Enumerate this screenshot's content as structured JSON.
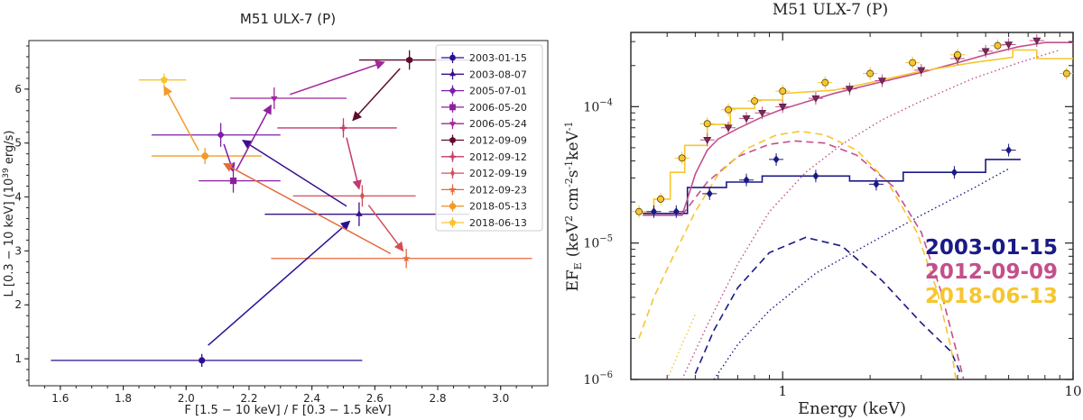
{
  "chart_data": [
    {
      "type": "scatter",
      "title": "M51 ULX-7 (P)",
      "xlabel": "F [1.5 − 10 keV] / F [0.3 − 1.5 keV]",
      "ylabel": "L [0.3 − 10 keV] (10",
      "ylabel_sup": "39",
      "ylabel_tail": " erg/s)",
      "xlim": [
        1.5,
        3.15
      ],
      "ylim": [
        0.5,
        6.9
      ],
      "xticks": [
        "1.6",
        "1.8",
        "2.0",
        "2.2",
        "2.4",
        "2.6",
        "2.8",
        "3.0"
      ],
      "yticks": [
        "1",
        "2",
        "3",
        "4",
        "5",
        "6"
      ],
      "series": [
        {
          "name": "2003-01-15",
          "marker": "circle",
          "color": "#2b0f94",
          "x": 2.05,
          "y": 0.97,
          "xerr": [
            0.48,
            0.51
          ],
          "yerr": 0.12
        },
        {
          "name": "2003-08-07",
          "marker": "triangle-up",
          "color": "#3a0f8a",
          "x": 2.55,
          "y": 3.68,
          "xerr": [
            0.3,
            0.35
          ],
          "yerr": 0.22
        },
        {
          "name": "2005-07-01",
          "marker": "diamond",
          "color": "#7a1fa8",
          "x": 2.11,
          "y": 5.15,
          "xerr": [
            0.22,
            0.19
          ],
          "yerr": 0.22
        },
        {
          "name": "2006-05-20",
          "marker": "square",
          "color": "#8e1ea0",
          "x": 2.15,
          "y": 4.3,
          "xerr": [
            0.11,
            0.15
          ],
          "yerr": 0.22
        },
        {
          "name": "2006-05-24",
          "marker": "triangle-down",
          "color": "#a1259c",
          "x": 2.28,
          "y": 5.83,
          "xerr": [
            0.14,
            0.23
          ],
          "yerr": 0.2
        },
        {
          "name": "2012-09-09",
          "marker": "hexagon",
          "color": "#5e0b2e",
          "x": 2.71,
          "y": 6.54,
          "xerr": [
            0.16,
            0.2
          ],
          "yerr": 0.18
        },
        {
          "name": "2012-09-12",
          "marker": "plus",
          "color": "#c43a6e",
          "x": 2.5,
          "y": 5.28,
          "xerr": [
            0.21,
            0.17
          ],
          "yerr": 0.18
        },
        {
          "name": "2012-09-19",
          "marker": "thin-diamond",
          "color": "#d44f5a",
          "x": 2.56,
          "y": 4.02,
          "xerr": [
            0.22,
            0.17
          ],
          "yerr": 0.2
        },
        {
          "name": "2012-09-23",
          "marker": "star",
          "color": "#e56a3c",
          "x": 2.7,
          "y": 2.86,
          "xerr": [
            0.43,
            0.4
          ],
          "yerr": 0.18
        },
        {
          "name": "2018-05-13",
          "marker": "octagon",
          "color": "#f39a2a",
          "x": 2.06,
          "y": 4.76,
          "xerr": [
            0.17,
            0.18
          ],
          "yerr": 0.15
        },
        {
          "name": "2018-06-13",
          "marker": "pentagon",
          "color": "#f9c431",
          "x": 1.93,
          "y": 6.17,
          "xerr": [
            0.08,
            0.07
          ],
          "yerr": 0.12
        }
      ],
      "arrows": [
        {
          "from": [
            2.07,
            1.25
          ],
          "to": [
            2.52,
            3.55
          ],
          "color": "#2b0f94"
        },
        {
          "from": [
            2.51,
            3.83
          ],
          "to": [
            2.18,
            5.05
          ],
          "color": "#3a0f8a"
        },
        {
          "from": [
            2.12,
            4.98
          ],
          "to": [
            2.15,
            4.47
          ],
          "color": "#7a1fa8"
        },
        {
          "from": [
            2.16,
            4.5
          ],
          "to": [
            2.27,
            5.7
          ],
          "color": "#8e1ea0"
        },
        {
          "from": [
            2.33,
            5.9
          ],
          "to": [
            2.63,
            6.5
          ],
          "color": "#a1259c"
        },
        {
          "from": [
            2.68,
            6.38
          ],
          "to": [
            2.53,
            5.42
          ],
          "color": "#5e0b2e"
        },
        {
          "from": [
            2.51,
            5.1
          ],
          "to": [
            2.55,
            4.15
          ],
          "color": "#c43a6e"
        },
        {
          "from": [
            2.58,
            3.85
          ],
          "to": [
            2.69,
            3.0
          ],
          "color": "#d44f5a"
        },
        {
          "from": [
            2.65,
            2.95
          ],
          "to": [
            2.12,
            4.62
          ],
          "color": "#e56a3c"
        },
        {
          "from": [
            2.04,
            4.86
          ],
          "to": [
            1.93,
            6.05
          ],
          "color": "#f39a2a"
        }
      ]
    },
    {
      "type": "line",
      "title": "M51 ULX-7 (P)",
      "xlabel": "Energy (keV)",
      "ylabel": "EF",
      "ylabel_sub": "E",
      "ylabel_units": "(keV",
      "ylabel_sup1": "2",
      "ylabel_mid": " cm",
      "ylabel_sup2": "-2",
      "ylabel_s": "s",
      "ylabel_sup3": "-1",
      "ylabel_kev": "keV",
      "ylabel_sup4": "-1",
      "xscale": "log",
      "yscale": "log",
      "xlim": [
        0.3,
        10
      ],
      "ylim": [
        1e-06,
        0.00035
      ],
      "xticks": [
        "1",
        "10"
      ],
      "yticks": [
        {
          "base": "10",
          "exp": "−4"
        },
        {
          "base": "10",
          "exp": "−5"
        },
        {
          "base": "10",
          "exp": "−6"
        }
      ],
      "legend": [
        {
          "label": "2003-01-15",
          "color": "#1a1a86"
        },
        {
          "label": "2012-09-09",
          "color": "#c44f8b"
        },
        {
          "label": "2018-06-13",
          "color": "#f6c630"
        }
      ],
      "series": [
        {
          "name": "2003-01-15",
          "color": "#1a1a86",
          "points": [
            {
              "x": 0.36,
              "y": 1.7e-05
            },
            {
              "x": 0.43,
              "y": 1.7e-05
            },
            {
              "x": 0.56,
              "y": 2.3e-05
            },
            {
              "x": 0.75,
              "y": 2.9e-05
            },
            {
              "x": 0.95,
              "y": 4.1e-05
            },
            {
              "x": 1.3,
              "y": 3.1e-05
            },
            {
              "x": 2.1,
              "y": 2.7e-05
            },
            {
              "x": 3.9,
              "y": 3.3e-05
            },
            {
              "x": 6.0,
              "y": 4.8e-05
            }
          ],
          "total_model": [
            [
              0.33,
              1.65e-05
            ],
            [
              0.47,
              1.65e-05
            ],
            [
              0.47,
              2.55e-05
            ],
            [
              0.64,
              2.55e-05
            ],
            [
              0.64,
              2.8e-05
            ],
            [
              0.85,
              2.8e-05
            ],
            [
              0.85,
              3.1e-05
            ],
            [
              1.7,
              3.1e-05
            ],
            [
              1.7,
              2.85e-05
            ],
            [
              2.6,
              2.85e-05
            ],
            [
              2.6,
              3.3e-05
            ],
            [
              5.0,
              3.3e-05
            ],
            [
              5.0,
              4.1e-05
            ],
            [
              6.6,
              4.1e-05
            ]
          ],
          "dashed": [
            [
              0.5,
              1.1e-06
            ],
            [
              0.58,
              2.3e-06
            ],
            [
              0.7,
              4.7e-06
            ],
            [
              0.9,
              8.5e-06
            ],
            [
              1.2,
              1.1e-05
            ],
            [
              1.6,
              9.5e-06
            ],
            [
              2.2,
              5.3e-06
            ],
            [
              3.0,
              2.6e-06
            ],
            [
              3.8,
              1.6e-06
            ],
            [
              4.1,
              1.1e-06
            ]
          ],
          "dotted": [
            [
              0.58,
              1e-06
            ],
            [
              0.7,
              1.8e-06
            ],
            [
              0.9,
              3.2e-06
            ],
            [
              1.3,
              6e-06
            ],
            [
              2.0,
              1e-05
            ],
            [
              3.0,
              1.6e-05
            ],
            [
              4.5,
              2.5e-05
            ],
            [
              6.0,
              3.5e-05
            ]
          ]
        },
        {
          "name": "2012-09-09",
          "color": "#c44f8b",
          "points": [
            {
              "x": 0.55,
              "y": 5.7e-05
            },
            {
              "x": 0.65,
              "y": 7e-05
            },
            {
              "x": 0.75,
              "y": 8.2e-05
            },
            {
              "x": 0.85,
              "y": 9e-05
            },
            {
              "x": 1.0,
              "y": 0.0001
            },
            {
              "x": 1.3,
              "y": 0.000115
            },
            {
              "x": 1.7,
              "y": 0.000135
            },
            {
              "x": 2.2,
              "y": 0.000155
            },
            {
              "x": 3.0,
              "y": 0.000185
            },
            {
              "x": 4.0,
              "y": 0.000225
            },
            {
              "x": 5.0,
              "y": 0.000255
            },
            {
              "x": 6.0,
              "y": 0.000285
            },
            {
              "x": 7.5,
              "y": 0.000305
            }
          ],
          "total_model": [
            [
              0.33,
              1.6e-05
            ],
            [
              0.45,
              1.6e-05
            ],
            [
              0.47,
              2.1e-05
            ],
            [
              0.5,
              3.2e-05
            ],
            [
              0.55,
              4.8e-05
            ],
            [
              0.6,
              5.8e-05
            ],
            [
              0.7,
              6.9e-05
            ],
            [
              0.85,
              8.4e-05
            ],
            [
              1.0,
              9.6e-05
            ],
            [
              1.5,
              0.000125
            ],
            [
              2.0,
              0.000145
            ],
            [
              3.0,
              0.000178
            ],
            [
              4.0,
              0.00021
            ],
            [
              5.0,
              0.00024
            ],
            [
              6.5,
              0.000275
            ],
            [
              8.0,
              0.000295
            ],
            [
              10,
              0.000295
            ]
          ],
          "dashed": [
            [
              0.45,
              1.6e-05
            ],
            [
              0.55,
              2.8e-05
            ],
            [
              0.7,
              4.3e-05
            ],
            [
              0.9,
              5.3e-05
            ],
            [
              1.1,
              5.6e-05
            ],
            [
              1.4,
              5.4e-05
            ],
            [
              1.8,
              4.4e-05
            ],
            [
              2.4,
              2.6e-05
            ],
            [
              3.0,
              1.2e-05
            ],
            [
              3.5,
              4.5e-06
            ],
            [
              4.0,
              1.5e-06
            ],
            [
              4.2,
              1e-06
            ]
          ],
          "dotted": [
            [
              0.45,
              1e-06
            ],
            [
              0.55,
              2.5e-06
            ],
            [
              0.7,
              7e-06
            ],
            [
              0.9,
              1.7e-05
            ],
            [
              1.2,
              3.3e-05
            ],
            [
              1.6,
              5.3e-05
            ],
            [
              2.2,
              8e-05
            ],
            [
              3.0,
              0.00011
            ],
            [
              4.5,
              0.00016
            ],
            [
              6.5,
              0.00021
            ],
            [
              9.0,
              0.00026
            ]
          ]
        },
        {
          "name": "2018-06-13",
          "color": "#f6c630",
          "points": [
            {
              "x": 0.32,
              "y": 1.7e-05
            },
            {
              "x": 0.38,
              "y": 2.1e-05
            },
            {
              "x": 0.45,
              "y": 4.2e-05
            },
            {
              "x": 0.55,
              "y": 7.5e-05
            },
            {
              "x": 0.65,
              "y": 9.5e-05
            },
            {
              "x": 0.8,
              "y": 0.00011
            },
            {
              "x": 1.0,
              "y": 0.00013
            },
            {
              "x": 1.4,
              "y": 0.00015
            },
            {
              "x": 2.0,
              "y": 0.000175
            },
            {
              "x": 2.8,
              "y": 0.00021
            },
            {
              "x": 4.0,
              "y": 0.00024
            },
            {
              "x": 5.5,
              "y": 0.00028
            },
            {
              "x": 9.5,
              "y": 0.000175
            }
          ],
          "total_model": [
            [
              0.33,
              1.7e-05
            ],
            [
              0.36,
              1.7e-05
            ],
            [
              0.36,
              2.1e-05
            ],
            [
              0.41,
              2.1e-05
            ],
            [
              0.41,
              3.3e-05
            ],
            [
              0.46,
              3.3e-05
            ],
            [
              0.46,
              5.2e-05
            ],
            [
              0.55,
              5.2e-05
            ],
            [
              0.55,
              7.4e-05
            ],
            [
              0.66,
              7.4e-05
            ],
            [
              0.66,
              9.7e-05
            ],
            [
              0.8,
              9.7e-05
            ],
            [
              0.8,
              0.000112
            ],
            [
              1.0,
              0.000112
            ],
            [
              1.0,
              0.000125
            ],
            [
              1.5,
              0.000132
            ],
            [
              2.0,
              0.00015
            ],
            [
              3.0,
              0.000182
            ],
            [
              4.5,
              0.00021
            ],
            [
              6.2,
              0.00023
            ],
            [
              6.2,
              0.00026
            ],
            [
              7.5,
              0.00026
            ],
            [
              7.5,
              0.000225
            ],
            [
              10,
              0.000225
            ]
          ],
          "dashed": [
            [
              0.32,
              2e-06
            ],
            [
              0.36,
              4e-06
            ],
            [
              0.42,
              8e-06
            ],
            [
              0.5,
              1.7e-05
            ],
            [
              0.6,
              3.2e-05
            ],
            [
              0.75,
              4.9e-05
            ],
            [
              0.95,
              6.2e-05
            ],
            [
              1.15,
              6.6e-05
            ],
            [
              1.4,
              6.2e-05
            ],
            [
              1.8,
              4.8e-05
            ],
            [
              2.3,
              2.8e-05
            ],
            [
              2.9,
              1.2e-05
            ],
            [
              3.4,
              4.5e-06
            ],
            [
              3.8,
              1.7e-06
            ],
            [
              3.95,
              1e-06
            ]
          ],
          "dotted": [
            [
              0.4,
              1e-06
            ],
            [
              0.45,
              1.8e-06
            ],
            [
              0.5,
              3e-06
            ]
          ]
        }
      ]
    }
  ]
}
